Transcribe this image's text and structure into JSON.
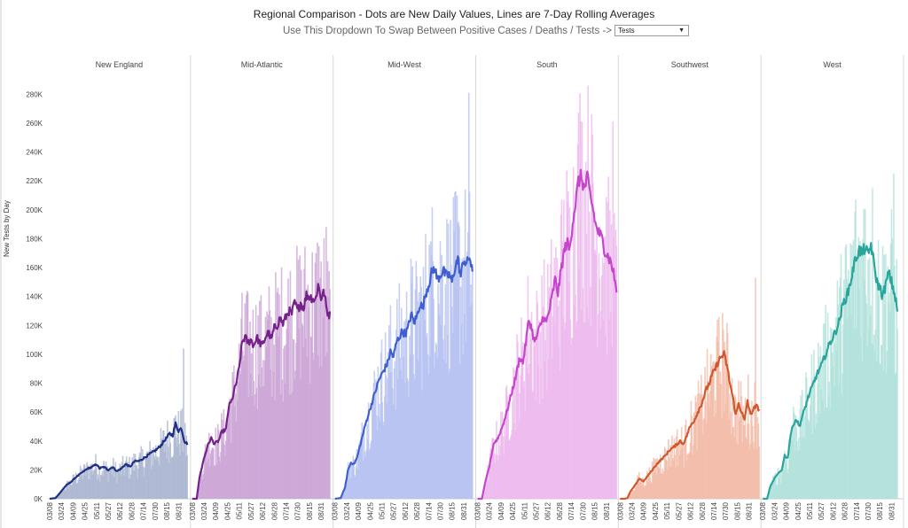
{
  "header": {
    "title": "Regional Comparison - Dots are New Daily Values, Lines are 7-Day Rolling Averages",
    "subtitle": "Use This Dropdown To Swap Between Positive Cases / Deaths / Tests ->",
    "dropdown_value": "Tests",
    "dropdown_arrow": "▼"
  },
  "chart_data": {
    "type": "bar",
    "title": "Regional Comparison - Dots are New Daily Values, Lines are 7-Day Rolling Averages",
    "ylabel": "New Tests by Day",
    "xlabel": "",
    "ylim": [
      0,
      290000
    ],
    "y_ticks": [
      0,
      20000,
      40000,
      60000,
      80000,
      100000,
      120000,
      140000,
      160000,
      180000,
      200000,
      220000,
      240000,
      260000,
      280000
    ],
    "y_tick_labels": [
      "0K",
      "20K",
      "40K",
      "60K",
      "80K",
      "100K",
      "120K",
      "140K",
      "160K",
      "180K",
      "200K",
      "220K",
      "240K",
      "260K",
      "280K"
    ],
    "x_tick_labels": [
      "03/08",
      "03/24",
      "04/09",
      "04/25",
      "05/11",
      "05/27",
      "06/12",
      "06/28",
      "07/14",
      "07/30",
      "08/15",
      "08/31"
    ],
    "x_tick_days": [
      0,
      16,
      32,
      48,
      64,
      80,
      96,
      112,
      128,
      144,
      160,
      176
    ],
    "days_span": 190,
    "panels": [
      {
        "name": "New England",
        "line_color": "#1f2f86",
        "bar_color": "#a8b3cf",
        "rolling_average_points": [
          [
            0,
            0
          ],
          [
            8,
            500
          ],
          [
            14,
            4000
          ],
          [
            22,
            9000
          ],
          [
            30,
            12000
          ],
          [
            36,
            15000
          ],
          [
            44,
            18000
          ],
          [
            52,
            21000
          ],
          [
            58,
            22000
          ],
          [
            64,
            24000
          ],
          [
            68,
            21000
          ],
          [
            74,
            22000
          ],
          [
            80,
            20000
          ],
          [
            86,
            22000
          ],
          [
            92,
            19000
          ],
          [
            98,
            21000
          ],
          [
            104,
            24000
          ],
          [
            110,
            22000
          ],
          [
            116,
            26000
          ],
          [
            122,
            26000
          ],
          [
            128,
            28000
          ],
          [
            134,
            30000
          ],
          [
            140,
            32000
          ],
          [
            146,
            34000
          ],
          [
            152,
            37000
          ],
          [
            158,
            41000
          ],
          [
            164,
            45000
          ],
          [
            168,
            44000
          ],
          [
            172,
            52000
          ],
          [
            176,
            47000
          ],
          [
            180,
            49000
          ],
          [
            184,
            40000
          ],
          [
            188,
            38000
          ]
        ],
        "daily_peak": 104000
      },
      {
        "name": "Mid-Atlantic",
        "line_color": "#76208a",
        "bar_color": "#c9a2d4",
        "rolling_average_points": [
          [
            0,
            0
          ],
          [
            6,
            0
          ],
          [
            10,
            15000
          ],
          [
            16,
            28000
          ],
          [
            22,
            38000
          ],
          [
            26,
            42000
          ],
          [
            30,
            38000
          ],
          [
            36,
            40000
          ],
          [
            40,
            46000
          ],
          [
            46,
            48000
          ],
          [
            50,
            64000
          ],
          [
            54,
            68000
          ],
          [
            60,
            80000
          ],
          [
            64,
            90000
          ],
          [
            68,
            108000
          ],
          [
            72,
            112000
          ],
          [
            76,
            108000
          ],
          [
            80,
            110000
          ],
          [
            84,
            106000
          ],
          [
            88,
            112000
          ],
          [
            92,
            108000
          ],
          [
            96,
            106000
          ],
          [
            100,
            112000
          ],
          [
            104,
            115000
          ],
          [
            108,
            110000
          ],
          [
            112,
            118000
          ],
          [
            116,
            120000
          ],
          [
            120,
            125000
          ],
          [
            124,
            121000
          ],
          [
            128,
            126000
          ],
          [
            132,
            130000
          ],
          [
            136,
            128000
          ],
          [
            140,
            136000
          ],
          [
            144,
            130000
          ],
          [
            148,
            136000
          ],
          [
            152,
            132000
          ],
          [
            156,
            141000
          ],
          [
            160,
            140000
          ],
          [
            164,
            139000
          ],
          [
            168,
            137000
          ],
          [
            172,
            148000
          ],
          [
            176,
            139000
          ],
          [
            180,
            143000
          ],
          [
            184,
            130000
          ],
          [
            188,
            127000
          ]
        ],
        "daily_peak": 188000
      },
      {
        "name": "Mid-West",
        "line_color": "#3f5fd0",
        "bar_color": "#b3bff0",
        "rolling_average_points": [
          [
            0,
            0
          ],
          [
            8,
            500
          ],
          [
            14,
            8000
          ],
          [
            18,
            20000
          ],
          [
            22,
            25000
          ],
          [
            26,
            24000
          ],
          [
            30,
            28000
          ],
          [
            36,
            40000
          ],
          [
            42,
            52000
          ],
          [
            48,
            62000
          ],
          [
            54,
            72000
          ],
          [
            60,
            82000
          ],
          [
            66,
            88000
          ],
          [
            72,
            94000
          ],
          [
            76,
            102000
          ],
          [
            80,
            98000
          ],
          [
            84,
            108000
          ],
          [
            88,
            112000
          ],
          [
            92,
            116000
          ],
          [
            96,
            114000
          ],
          [
            100,
            118000
          ],
          [
            104,
            128000
          ],
          [
            108,
            122000
          ],
          [
            112,
            126000
          ],
          [
            116,
            135000
          ],
          [
            120,
            132000
          ],
          [
            124,
            142000
          ],
          [
            128,
            148000
          ],
          [
            132,
            156000
          ],
          [
            136,
            160000
          ],
          [
            140,
            152000
          ],
          [
            144,
            155000
          ],
          [
            148,
            158000
          ],
          [
            152,
            154000
          ],
          [
            156,
            155000
          ],
          [
            160,
            150000
          ],
          [
            164,
            160000
          ],
          [
            168,
            166000
          ],
          [
            172,
            154000
          ],
          [
            176,
            166000
          ],
          [
            180,
            162000
          ],
          [
            184,
            168000
          ],
          [
            188,
            155000
          ]
        ],
        "daily_peak": 281000
      },
      {
        "name": "South",
        "line_color": "#c546cc",
        "bar_color": "#ecb5ec",
        "rolling_average_points": [
          [
            0,
            0
          ],
          [
            6,
            0
          ],
          [
            10,
            10000
          ],
          [
            16,
            22000
          ],
          [
            22,
            38000
          ],
          [
            28,
            42000
          ],
          [
            34,
            50000
          ],
          [
            40,
            60000
          ],
          [
            46,
            72000
          ],
          [
            52,
            84000
          ],
          [
            58,
            98000
          ],
          [
            62,
            94000
          ],
          [
            66,
            108000
          ],
          [
            70,
            124000
          ],
          [
            74,
            118000
          ],
          [
            78,
            108000
          ],
          [
            82,
            114000
          ],
          [
            86,
            120000
          ],
          [
            90,
            126000
          ],
          [
            94,
            122000
          ],
          [
            98,
            130000
          ],
          [
            102,
            140000
          ],
          [
            106,
            152000
          ],
          [
            110,
            142000
          ],
          [
            114,
            158000
          ],
          [
            118,
            170000
          ],
          [
            122,
            178000
          ],
          [
            126,
            172000
          ],
          [
            130,
            192000
          ],
          [
            134,
            205000
          ],
          [
            138,
            220000
          ],
          [
            142,
            223000
          ],
          [
            146,
            214000
          ],
          [
            150,
            222000
          ],
          [
            154,
            210000
          ],
          [
            158,
            200000
          ],
          [
            162,
            188000
          ],
          [
            166,
            184000
          ],
          [
            170,
            180000
          ],
          [
            174,
            172000
          ],
          [
            178,
            168000
          ],
          [
            182,
            164000
          ],
          [
            186,
            156000
          ],
          [
            190,
            144000
          ]
        ],
        "daily_peak": 261000
      },
      {
        "name": "Southwest",
        "line_color": "#d0582d",
        "bar_color": "#f2b8a4",
        "rolling_average_points": [
          [
            0,
            0
          ],
          [
            6,
            0
          ],
          [
            10,
            500
          ],
          [
            14,
            5000
          ],
          [
            20,
            9000
          ],
          [
            26,
            14000
          ],
          [
            32,
            12000
          ],
          [
            38,
            16000
          ],
          [
            44,
            20000
          ],
          [
            50,
            24000
          ],
          [
            56,
            27000
          ],
          [
            62,
            30000
          ],
          [
            68,
            34000
          ],
          [
            74,
            36000
          ],
          [
            78,
            38000
          ],
          [
            82,
            40000
          ],
          [
            86,
            38000
          ],
          [
            90,
            42000
          ],
          [
            94,
            48000
          ],
          [
            98,
            52000
          ],
          [
            102,
            55000
          ],
          [
            106,
            60000
          ],
          [
            110,
            64000
          ],
          [
            114,
            70000
          ],
          [
            118,
            76000
          ],
          [
            122,
            80000
          ],
          [
            126,
            86000
          ],
          [
            130,
            90000
          ],
          [
            134,
            95000
          ],
          [
            138,
            98000
          ],
          [
            142,
            100000
          ],
          [
            146,
            92000
          ],
          [
            150,
            80000
          ],
          [
            154,
            70000
          ],
          [
            158,
            58000
          ],
          [
            162,
            66000
          ],
          [
            166,
            60000
          ],
          [
            170,
            54000
          ],
          [
            174,
            68000
          ],
          [
            178,
            58000
          ],
          [
            182,
            62000
          ],
          [
            186,
            64000
          ],
          [
            190,
            62000
          ]
        ],
        "daily_peak": 153000
      },
      {
        "name": "West",
        "line_color": "#2aa59c",
        "bar_color": "#aee0da",
        "rolling_average_points": [
          [
            0,
            0
          ],
          [
            6,
            0
          ],
          [
            10,
            8000
          ],
          [
            16,
            14000
          ],
          [
            22,
            18000
          ],
          [
            26,
            20000
          ],
          [
            30,
            30000
          ],
          [
            34,
            28000
          ],
          [
            38,
            44000
          ],
          [
            42,
            52000
          ],
          [
            46,
            55000
          ],
          [
            50,
            50000
          ],
          [
            56,
            60000
          ],
          [
            62,
            70000
          ],
          [
            68,
            78000
          ],
          [
            74,
            86000
          ],
          [
            80,
            92000
          ],
          [
            86,
            100000
          ],
          [
            92,
            108000
          ],
          [
            98,
            114000
          ],
          [
            104,
            122000
          ],
          [
            110,
            135000
          ],
          [
            116,
            142000
          ],
          [
            120,
            150000
          ],
          [
            124,
            160000
          ],
          [
            128,
            168000
          ],
          [
            132,
            172000
          ],
          [
            136,
            170000
          ],
          [
            140,
            174000
          ],
          [
            144,
            168000
          ],
          [
            148,
            176000
          ],
          [
            152,
            162000
          ],
          [
            156,
            150000
          ],
          [
            160,
            146000
          ],
          [
            164,
            140000
          ],
          [
            168,
            148000
          ],
          [
            172,
            156000
          ],
          [
            176,
            150000
          ],
          [
            180,
            142000
          ],
          [
            184,
            130000
          ]
        ],
        "daily_peak": 225000
      }
    ]
  }
}
